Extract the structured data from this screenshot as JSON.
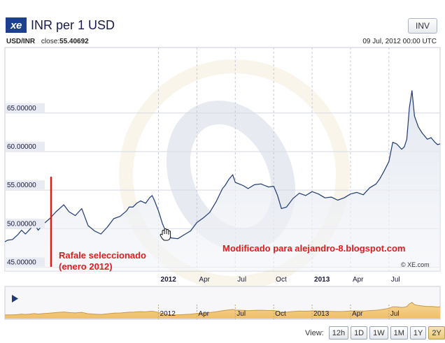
{
  "header": {
    "logo": "xe",
    "title": "INR per 1 USD",
    "inv_label": "INV"
  },
  "meta": {
    "pair": "USD/INR",
    "close_label": "close:",
    "close_value": "55.40692",
    "date": "09 Jul, 2012 00:00 UTC"
  },
  "chart_data": {
    "type": "area",
    "xlabel": "",
    "ylabel": "",
    "ylim": [
      44.5,
      73.5
    ],
    "y_ticks": [
      {
        "value": 45,
        "label": "45.00000"
      },
      {
        "value": 50,
        "label": "50.00000"
      },
      {
        "value": 55,
        "label": "55.00000"
      },
      {
        "value": 60,
        "label": "60.00000"
      },
      {
        "value": 65,
        "label": "65.00000"
      }
    ],
    "x_ticks": [
      {
        "month": 12,
        "label": "2012",
        "bold": true
      },
      {
        "month": 15,
        "label": "Apr",
        "bold": false
      },
      {
        "month": 18,
        "label": "Jul",
        "bold": false
      },
      {
        "month": 21,
        "label": "Oct",
        "bold": false
      },
      {
        "month": 24,
        "label": "2013",
        "bold": true
      },
      {
        "month": 27,
        "label": "Apr",
        "bold": false
      },
      {
        "month": 30,
        "label": "Jul",
        "bold": false
      }
    ],
    "series": [
      {
        "color": "#1f3a73",
        "x": [
          0.0,
          0.2,
          0.6,
          1.0,
          1.3,
          1.6,
          2.0,
          2.3,
          2.6,
          3.0,
          3.5,
          4.0,
          4.6,
          5.0,
          5.5,
          6.0,
          6.5,
          7.0,
          7.5,
          8.0,
          8.5,
          9.0,
          9.5,
          9.7,
          10.0,
          10.3,
          10.6,
          11.0,
          11.3,
          11.5,
          11.7,
          12.0,
          12.3,
          12.6,
          13.0,
          13.5,
          14.0,
          14.5,
          15.0,
          15.5,
          16.0,
          16.5,
          17.0,
          17.2,
          17.5,
          17.8,
          18.0,
          18.3,
          18.6,
          19.0,
          19.5,
          20.0,
          20.3,
          20.6,
          21.0,
          21.3,
          21.6,
          22.0,
          22.5,
          23.0,
          23.5,
          24.0,
          24.5,
          25.0,
          25.5,
          26.0,
          26.5,
          27.0,
          27.5,
          28.0,
          28.5,
          29.0,
          29.3,
          29.6,
          30.0,
          30.3,
          30.6,
          31.0,
          31.2,
          31.4,
          31.6,
          31.8,
          32.0,
          32.3,
          32.6,
          33.0,
          33.3,
          33.6,
          33.8,
          34.0
        ],
        "values": [
          48.3,
          48.5,
          48.6,
          49.2,
          49.8,
          49.3,
          50.0,
          50.6,
          49.8,
          50.6,
          51.3,
          52.2,
          53.1,
          52.2,
          51.7,
          52.6,
          50.4,
          49.7,
          49.3,
          50.2,
          51.3,
          51.6,
          52.3,
          52.8,
          52.8,
          53.3,
          53.6,
          53.3,
          54.0,
          54.3,
          53.6,
          52.3,
          50.7,
          49.5,
          48.8,
          48.7,
          49.2,
          49.7,
          50.8,
          51.4,
          52.1,
          53.5,
          55.2,
          55.6,
          56.4,
          57.0,
          56.0,
          55.8,
          55.6,
          55.2,
          55.7,
          55.8,
          55.6,
          55.4,
          55.5,
          54.3,
          52.6,
          52.8,
          53.9,
          54.6,
          54.3,
          54.8,
          54.5,
          54.0,
          54.1,
          53.7,
          54.0,
          54.5,
          54.7,
          54.4,
          55.3,
          55.8,
          56.5,
          57.4,
          58.7,
          61.2,
          61.0,
          60.3,
          60.6,
          61.6,
          65.7,
          67.9,
          64.6,
          63.2,
          62.4,
          61.6,
          61.8,
          61.2,
          60.9,
          61.0
        ]
      }
    ]
  },
  "navigator": {
    "labels": [
      {
        "month": 12,
        "label": "2012"
      },
      {
        "month": 15,
        "label": "Apr"
      },
      {
        "month": 18,
        "label": "Jul"
      },
      {
        "month": 21,
        "label": "Oct"
      },
      {
        "month": 24,
        "label": "2013"
      },
      {
        "month": 27,
        "label": "Apr"
      },
      {
        "month": 30,
        "label": "Jul"
      }
    ],
    "fill_color": "#f3c97f"
  },
  "annotations": {
    "left_line1": "Rafale seleccionado",
    "left_line2": "(enero 2012)",
    "right": "Modificado para alejandro-8.blogspot.com",
    "color": "#e01b1b"
  },
  "copyright": "© XE.com",
  "view": {
    "label": "View:",
    "buttons": [
      "12h",
      "1D",
      "1W",
      "1M",
      "1Y",
      "2Y"
    ],
    "active": "2Y"
  }
}
